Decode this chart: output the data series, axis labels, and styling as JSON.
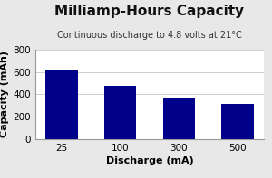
{
  "title": "Milliamp-Hours Capacity",
  "subtitle": "Continuous discharge to 4.8 volts at 21°C",
  "xlabel": "Discharge (mA)",
  "ylabel": "Capacity (mAh)",
  "categories": [
    "25",
    "100",
    "300",
    "500"
  ],
  "values": [
    625,
    475,
    368,
    318
  ],
  "bar_color": "#00008B",
  "ylim": [
    0,
    800
  ],
  "yticks": [
    0,
    200,
    400,
    600,
    800
  ],
  "background_color": "#e8e8e8",
  "plot_background": "#ffffff",
  "title_fontsize": 11,
  "subtitle_fontsize": 7,
  "axis_label_fontsize": 8,
  "tick_fontsize": 7.5
}
